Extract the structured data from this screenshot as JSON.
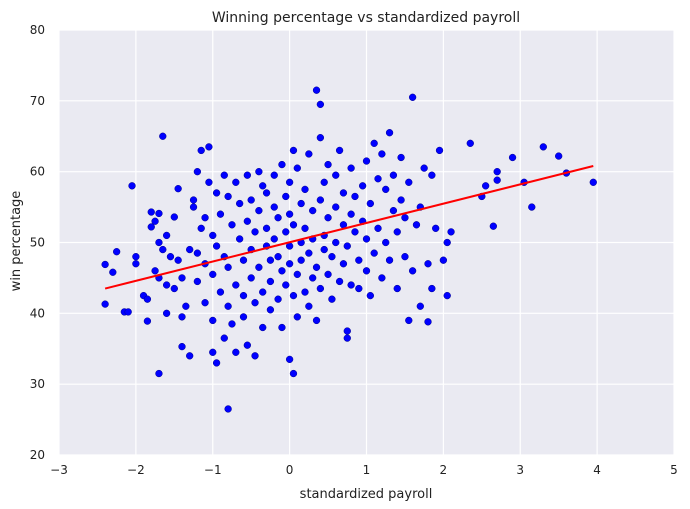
{
  "chart_data": {
    "type": "scatter",
    "title": "Winning percentage vs standardized payroll",
    "xlabel": "standardized payroll",
    "ylabel": "win percentage",
    "xlim": [
      -3,
      5
    ],
    "ylim": [
      20,
      80
    ],
    "xticks": [
      -3,
      -2,
      -1,
      0,
      1,
      2,
      3,
      4,
      5
    ],
    "yticks": [
      20,
      30,
      40,
      50,
      60,
      70,
      80
    ],
    "grid": true,
    "colors": {
      "background": "#eaeaf2",
      "grid": "#ffffff",
      "points": "#0000ff",
      "point_edge": "#00008b",
      "fit_line": "#ff0000"
    },
    "series": [
      {
        "kind": "points",
        "points": [
          [
            -2.4,
            46.9
          ],
          [
            -2.4,
            41.3
          ],
          [
            -2.3,
            45.8
          ],
          [
            -2.25,
            48.7
          ],
          [
            -2.15,
            40.2
          ],
          [
            -2.1,
            40.2
          ],
          [
            -2.05,
            58.0
          ],
          [
            -2.0,
            47.0
          ],
          [
            -2.0,
            48.0
          ],
          [
            -1.9,
            42.5
          ],
          [
            -1.85,
            42.0
          ],
          [
            -1.85,
            38.9
          ],
          [
            -1.8,
            52.2
          ],
          [
            -1.8,
            54.3
          ],
          [
            -1.75,
            46.0
          ],
          [
            -1.75,
            53.0
          ],
          [
            -1.7,
            50.0
          ],
          [
            -1.7,
            45.0
          ],
          [
            -1.7,
            31.5
          ],
          [
            -1.7,
            54.1
          ],
          [
            -1.65,
            65.0
          ],
          [
            -1.65,
            49.0
          ],
          [
            -1.6,
            51.0
          ],
          [
            -1.6,
            40.0
          ],
          [
            -1.6,
            44.0
          ],
          [
            -1.55,
            48.0
          ],
          [
            -1.5,
            53.6
          ],
          [
            -1.5,
            43.5
          ],
          [
            -1.45,
            47.5
          ],
          [
            -1.45,
            57.6
          ],
          [
            -1.4,
            35.3
          ],
          [
            -1.4,
            39.5
          ],
          [
            -1.4,
            45.0
          ],
          [
            -1.35,
            41.0
          ],
          [
            -1.3,
            34.0
          ],
          [
            -1.3,
            49.0
          ],
          [
            -1.25,
            55.0
          ],
          [
            -1.25,
            56.0
          ],
          [
            -1.2,
            60.0
          ],
          [
            -1.2,
            48.5
          ],
          [
            -1.2,
            44.5
          ],
          [
            -1.15,
            63.0
          ],
          [
            -1.15,
            52.0
          ],
          [
            -1.1,
            53.5
          ],
          [
            -1.1,
            47.0
          ],
          [
            -1.1,
            41.5
          ],
          [
            -1.05,
            63.5
          ],
          [
            -1.05,
            58.5
          ],
          [
            -1.0,
            51.0
          ],
          [
            -1.0,
            45.5
          ],
          [
            -1.0,
            39.0
          ],
          [
            -1.0,
            34.5
          ],
          [
            -0.95,
            33.0
          ],
          [
            -0.95,
            57.0
          ],
          [
            -0.95,
            49.5
          ],
          [
            -0.9,
            43.0
          ],
          [
            -0.9,
            54.0
          ],
          [
            -0.85,
            59.5
          ],
          [
            -0.85,
            36.5
          ],
          [
            -0.85,
            48.0
          ],
          [
            -0.8,
            26.5
          ],
          [
            -0.8,
            56.5
          ],
          [
            -0.8,
            46.5
          ],
          [
            -0.8,
            41.0
          ],
          [
            -0.75,
            38.5
          ],
          [
            -0.75,
            52.5
          ],
          [
            -0.7,
            58.5
          ],
          [
            -0.7,
            44.0
          ],
          [
            -0.7,
            34.5
          ],
          [
            -0.65,
            50.5
          ],
          [
            -0.65,
            55.5
          ],
          [
            -0.6,
            47.5
          ],
          [
            -0.6,
            42.5
          ],
          [
            -0.6,
            39.5
          ],
          [
            -0.55,
            59.5
          ],
          [
            -0.55,
            53.0
          ],
          [
            -0.55,
            35.5
          ],
          [
            -0.5,
            45.0
          ],
          [
            -0.5,
            49.0
          ],
          [
            -0.5,
            56.0
          ],
          [
            -0.45,
            34.0
          ],
          [
            -0.45,
            41.5
          ],
          [
            -0.45,
            51.5
          ],
          [
            -0.4,
            60.0
          ],
          [
            -0.4,
            46.5
          ],
          [
            -0.4,
            54.5
          ],
          [
            -0.35,
            38.0
          ],
          [
            -0.35,
            43.0
          ],
          [
            -0.35,
            58.0
          ],
          [
            -0.3,
            49.5
          ],
          [
            -0.3,
            52.0
          ],
          [
            -0.3,
            57.0
          ],
          [
            -0.25,
            44.5
          ],
          [
            -0.25,
            40.5
          ],
          [
            -0.25,
            47.5
          ],
          [
            -0.2,
            55.0
          ],
          [
            -0.2,
            59.5
          ],
          [
            -0.2,
            50.5
          ],
          [
            -0.15,
            42.0
          ],
          [
            -0.15,
            48.0
          ],
          [
            -0.15,
            53.5
          ],
          [
            -0.1,
            46.0
          ],
          [
            -0.1,
            61.0
          ],
          [
            -0.1,
            38.0
          ],
          [
            -0.05,
            51.5
          ],
          [
            -0.05,
            56.5
          ],
          [
            -0.05,
            44.0
          ],
          [
            0.0,
            33.5
          ],
          [
            0.0,
            49.5
          ],
          [
            0.0,
            54.0
          ],
          [
            0.0,
            58.5
          ],
          [
            0.0,
            47.0
          ],
          [
            0.05,
            31.5
          ],
          [
            0.05,
            63.0
          ],
          [
            0.05,
            42.5
          ],
          [
            0.05,
            52.5
          ],
          [
            0.1,
            45.5
          ],
          [
            0.1,
            60.5
          ],
          [
            0.1,
            39.5
          ],
          [
            0.15,
            50.0
          ],
          [
            0.15,
            55.5
          ],
          [
            0.15,
            47.5
          ],
          [
            0.2,
            43.0
          ],
          [
            0.2,
            57.5
          ],
          [
            0.2,
            52.0
          ],
          [
            0.25,
            48.5
          ],
          [
            0.25,
            41.0
          ],
          [
            0.25,
            62.5
          ],
          [
            0.3,
            45.0
          ],
          [
            0.3,
            54.5
          ],
          [
            0.3,
            50.5
          ],
          [
            0.35,
            71.5
          ],
          [
            0.35,
            46.5
          ],
          [
            0.35,
            39.0
          ],
          [
            0.4,
            69.5
          ],
          [
            0.4,
            64.8
          ],
          [
            0.4,
            56.0
          ],
          [
            0.4,
            43.5
          ],
          [
            0.45,
            51.0
          ],
          [
            0.45,
            49.0
          ],
          [
            0.45,
            58.5
          ],
          [
            0.5,
            45.5
          ],
          [
            0.5,
            61.0
          ],
          [
            0.5,
            53.5
          ],
          [
            0.55,
            42.0
          ],
          [
            0.55,
            48.0
          ],
          [
            0.6,
            55.0
          ],
          [
            0.6,
            59.5
          ],
          [
            0.6,
            50.0
          ],
          [
            0.65,
            44.5
          ],
          [
            0.65,
            63.0
          ],
          [
            0.7,
            52.5
          ],
          [
            0.7,
            47.0
          ],
          [
            0.7,
            57.0
          ],
          [
            0.75,
            37.5
          ],
          [
            0.75,
            36.5
          ],
          [
            0.75,
            49.5
          ],
          [
            0.8,
            54.0
          ],
          [
            0.8,
            60.5
          ],
          [
            0.8,
            44.0
          ],
          [
            0.85,
            51.5
          ],
          [
            0.85,
            56.5
          ],
          [
            0.9,
            47.5
          ],
          [
            0.9,
            43.5
          ],
          [
            0.95,
            58.0
          ],
          [
            0.95,
            53.0
          ],
          [
            1.0,
            46.0
          ],
          [
            1.0,
            61.5
          ],
          [
            1.0,
            50.5
          ],
          [
            1.05,
            55.5
          ],
          [
            1.05,
            42.5
          ],
          [
            1.1,
            64.0
          ],
          [
            1.1,
            48.5
          ],
          [
            1.15,
            59.0
          ],
          [
            1.15,
            52.0
          ],
          [
            1.2,
            45.0
          ],
          [
            1.2,
            62.5
          ],
          [
            1.25,
            57.5
          ],
          [
            1.25,
            50.0
          ],
          [
            1.3,
            65.5
          ],
          [
            1.3,
            47.5
          ],
          [
            1.35,
            54.5
          ],
          [
            1.35,
            59.5
          ],
          [
            1.4,
            43.5
          ],
          [
            1.4,
            51.5
          ],
          [
            1.45,
            62.0
          ],
          [
            1.45,
            56.0
          ],
          [
            1.5,
            48.0
          ],
          [
            1.5,
            53.5
          ],
          [
            1.55,
            39.0
          ],
          [
            1.55,
            58.5
          ],
          [
            1.6,
            70.5
          ],
          [
            1.6,
            46.0
          ],
          [
            1.65,
            52.5
          ],
          [
            1.7,
            41.0
          ],
          [
            1.7,
            55.0
          ],
          [
            1.75,
            60.5
          ],
          [
            1.8,
            38.8
          ],
          [
            1.8,
            47.0
          ],
          [
            1.85,
            59.5
          ],
          [
            1.85,
            43.5
          ],
          [
            1.9,
            52.0
          ],
          [
            1.95,
            63.0
          ],
          [
            2.0,
            47.5
          ],
          [
            2.05,
            50.0
          ],
          [
            2.05,
            42.5
          ],
          [
            2.1,
            51.5
          ],
          [
            2.35,
            64.0
          ],
          [
            2.5,
            56.5
          ],
          [
            2.55,
            58.0
          ],
          [
            2.65,
            52.3
          ],
          [
            2.7,
            60.0
          ],
          [
            2.7,
            58.8
          ],
          [
            2.9,
            62.0
          ],
          [
            3.05,
            58.5
          ],
          [
            3.15,
            55.0
          ],
          [
            3.3,
            63.5
          ],
          [
            3.5,
            62.2
          ],
          [
            3.6,
            59.8
          ],
          [
            3.95,
            58.5
          ]
        ]
      },
      {
        "kind": "fit-line",
        "x": [
          -2.4,
          3.95
        ],
        "y": [
          43.5,
          60.8
        ]
      }
    ]
  }
}
